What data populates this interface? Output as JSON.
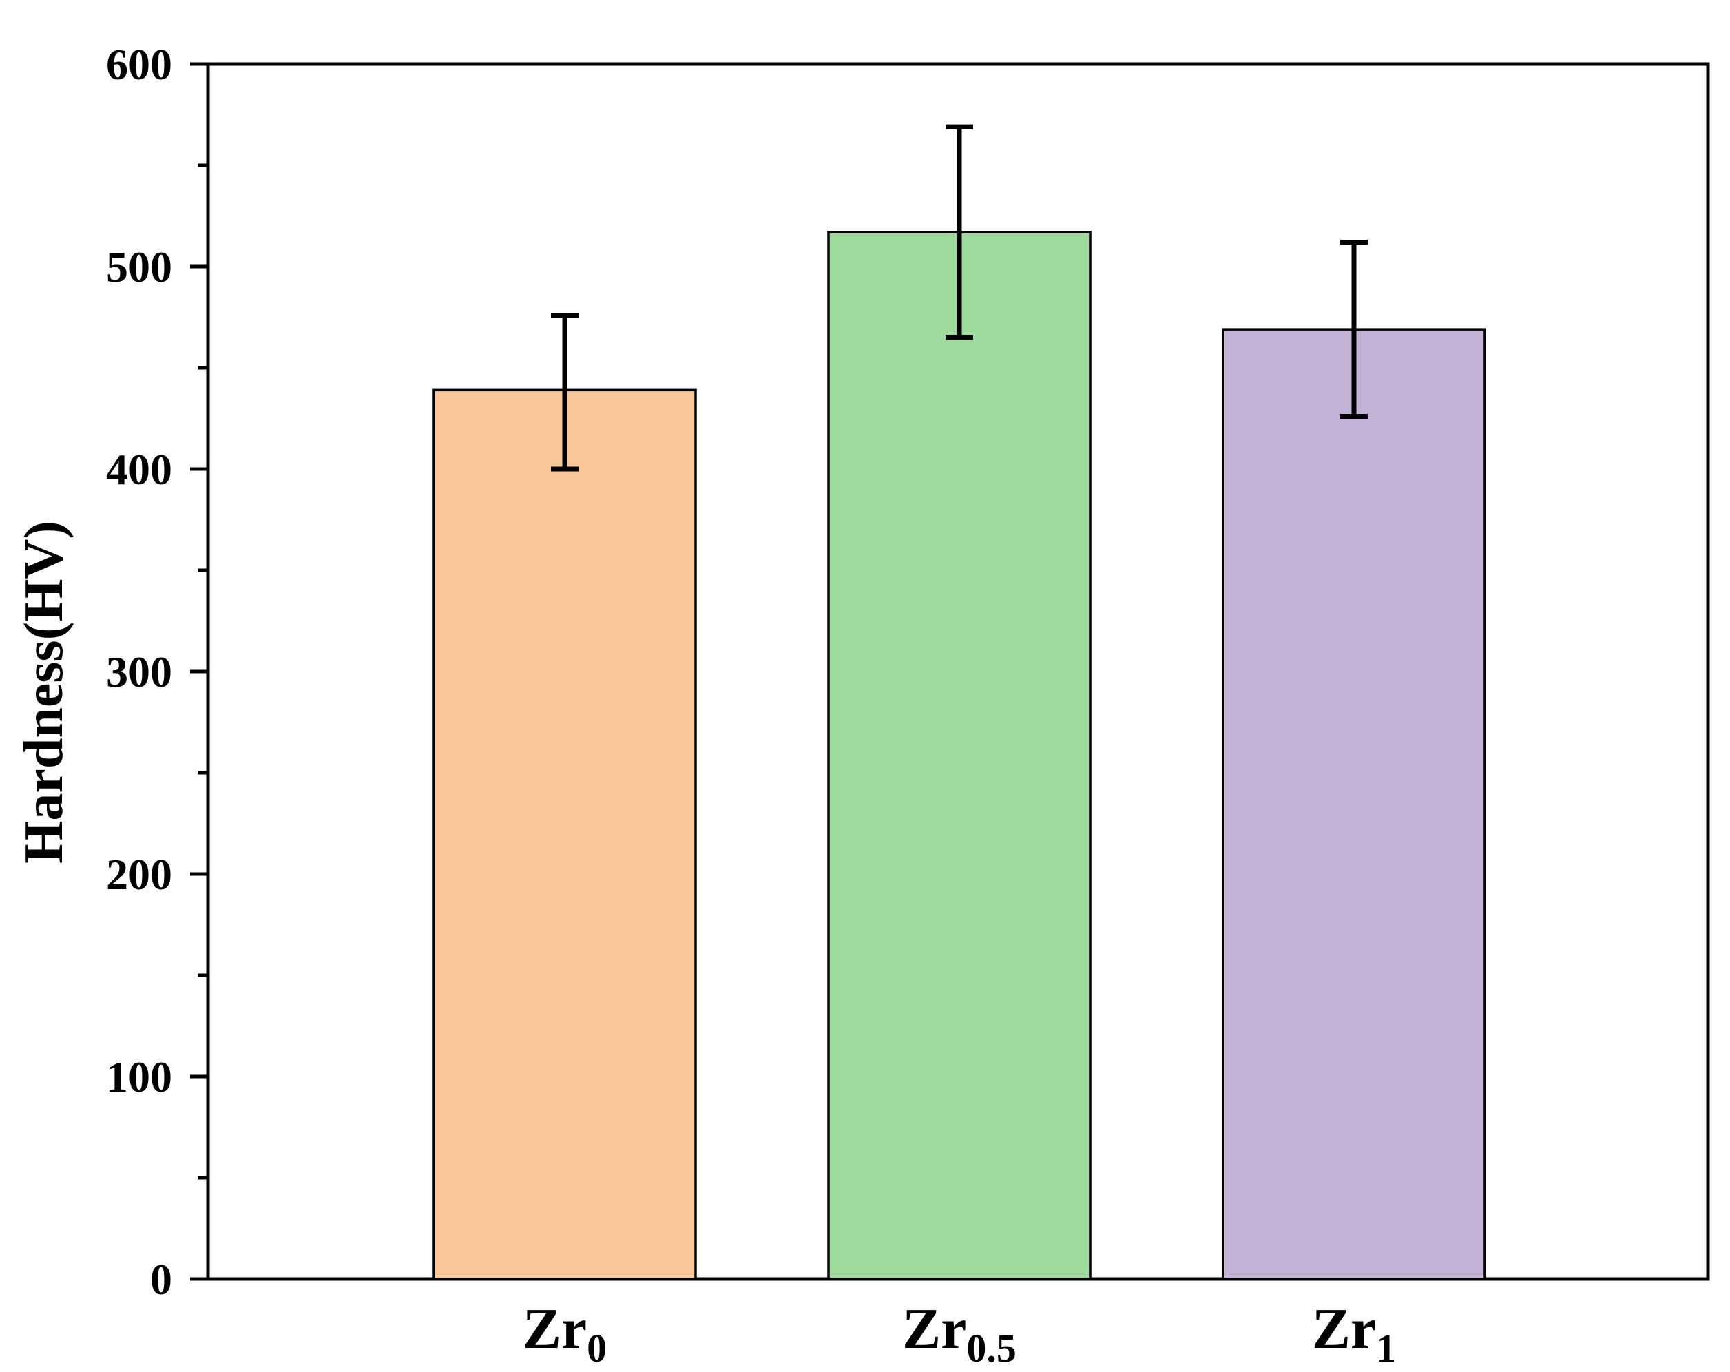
{
  "chart_data": {
    "type": "bar",
    "title": "",
    "xlabel": "",
    "ylabel": "Hardness(HV)",
    "ylim": [
      0,
      600
    ],
    "yticks": [
      0,
      100,
      200,
      300,
      400,
      500,
      600
    ],
    "yticks_minor": [
      50,
      150,
      250,
      350,
      450,
      550
    ],
    "grid": false,
    "legend": "none",
    "categories": [
      {
        "base": "Zr",
        "sub": "0"
      },
      {
        "base": "Zr",
        "sub": "0.5"
      },
      {
        "base": "Zr",
        "sub": "1"
      }
    ],
    "values": [
      439,
      517,
      469
    ],
    "error_low": [
      400,
      465,
      426
    ],
    "error_high": [
      476,
      569,
      512
    ],
    "colors": [
      "#FAC898",
      "#9FDA9D",
      "#C2B2D6"
    ]
  }
}
